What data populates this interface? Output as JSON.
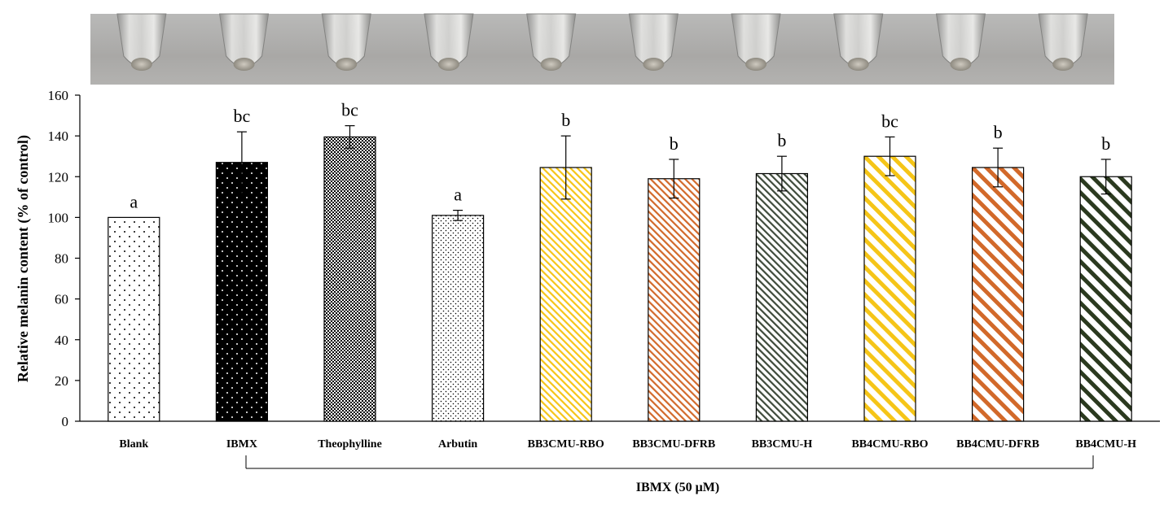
{
  "chart_data": {
    "type": "bar",
    "title": "",
    "xlabel": "",
    "ylabel": "Relative melanin content (% of control)",
    "ylim": [
      0,
      160
    ],
    "yticks": [
      0,
      20,
      40,
      60,
      80,
      100,
      120,
      140,
      160
    ],
    "categories": [
      "Blank",
      "IBMX",
      "Theophylline",
      "Arbutin",
      "BB3CMU-RBO",
      "BB3CMU-DFRB",
      "BB3CMU-H",
      "BB4CMU-RBO",
      "BB4CMU-DFRB",
      "BB4CMU-H"
    ],
    "values": [
      100,
      127,
      139.5,
      101,
      124.5,
      119,
      121.5,
      130,
      124.5,
      120
    ],
    "errors": [
      0,
      15,
      5.5,
      2.5,
      15.5,
      9.5,
      8.5,
      9.5,
      9.5,
      8.5
    ],
    "significance": [
      "a",
      "bc",
      "bc",
      "a",
      "b",
      "b",
      "b",
      "bc",
      "b",
      "b"
    ],
    "patterns": [
      "sparse-dots",
      "black-dots",
      "checker",
      "fine-dots",
      "diag-yellow",
      "diag-orange",
      "diag-gray",
      "wide-diag-yellow",
      "wide-diag-orange",
      "wide-diag-dark"
    ],
    "colors": {
      "yellow": "#F5C518",
      "orange": "#D2692A",
      "gray": "#3E4A3A",
      "dark": "#2B3A1F",
      "black": "#000000"
    },
    "group_bracket": {
      "label": "IBMX (50 μM)",
      "from": "IBMX",
      "to": "BB4CMU-H"
    },
    "photo_strip": {
      "tube_count": 10
    },
    "grid": false
  }
}
